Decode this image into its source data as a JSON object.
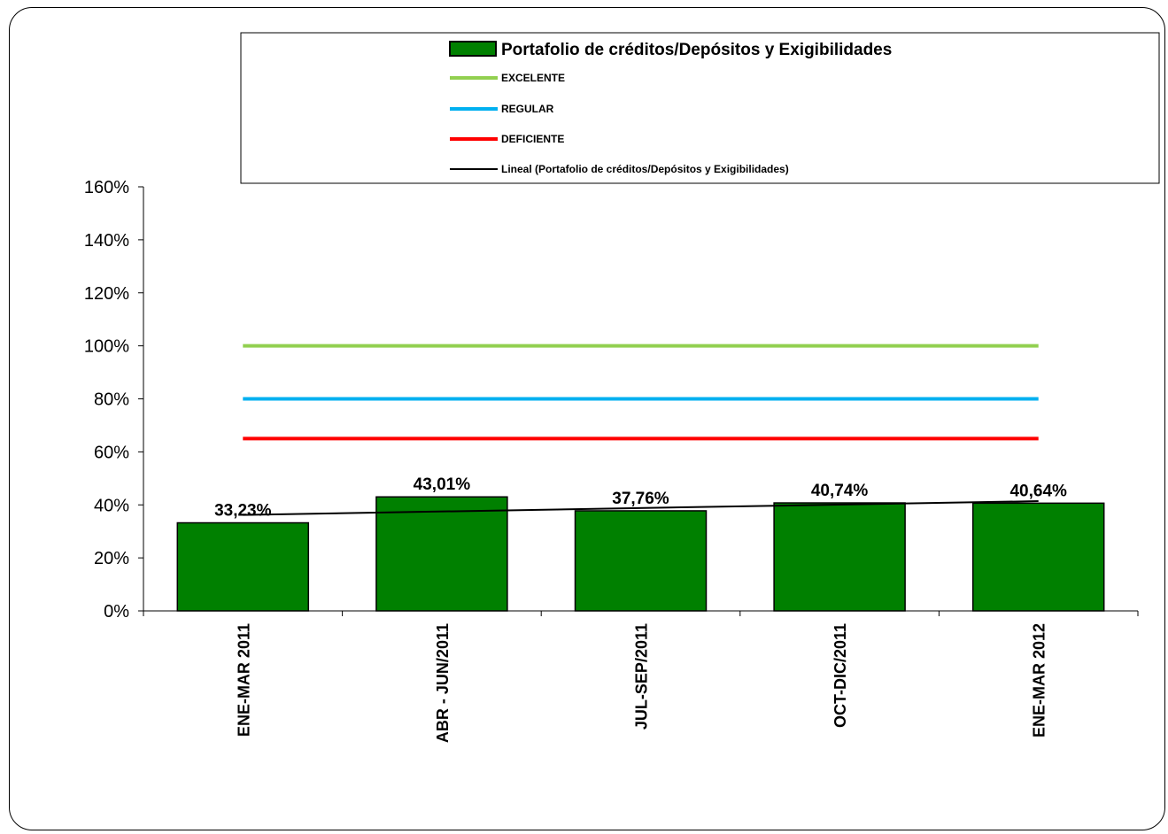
{
  "chart_data": {
    "type": "bar",
    "categories": [
      "ENE-MAR 2011",
      "ABR - JUN/2011",
      "JUL-SEP/2011",
      "OCT-DIC/2011",
      "ENE-MAR 2012"
    ],
    "series": [
      {
        "name": "Portafolio de créditos/Depósitos y Exigibilidades",
        "type": "bar",
        "values": [
          33.23,
          43.01,
          37.76,
          40.74,
          40.64
        ],
        "labels": [
          "33,23%",
          "43,01%",
          "37,76%",
          "40,74%",
          "40,64%"
        ],
        "color": "#008000"
      },
      {
        "name": "EXCELENTE",
        "type": "line",
        "values": [
          100,
          100,
          100,
          100,
          100
        ],
        "color": "#92D050"
      },
      {
        "name": "REGULAR",
        "type": "line",
        "values": [
          80,
          80,
          80,
          80,
          80
        ],
        "color": "#00B0F0"
      },
      {
        "name": "DEFICIENTE",
        "type": "line",
        "values": [
          65,
          65,
          65,
          65,
          65
        ],
        "color": "#FF0000"
      },
      {
        "name": "Lineal (Portafolio de créditos/Depósitos y Exigibilidades)",
        "type": "trendline",
        "values": [
          36.2,
          37.5,
          38.8,
          40.1,
          41.4
        ],
        "color": "#000000"
      }
    ],
    "y_ticks": [
      "0%",
      "20%",
      "40%",
      "60%",
      "80%",
      "100%",
      "120%",
      "140%",
      "160%"
    ],
    "ylim": [
      0,
      160
    ],
    "ylabel": "",
    "xlabel": "",
    "grid": false,
    "legend_position": "top"
  }
}
